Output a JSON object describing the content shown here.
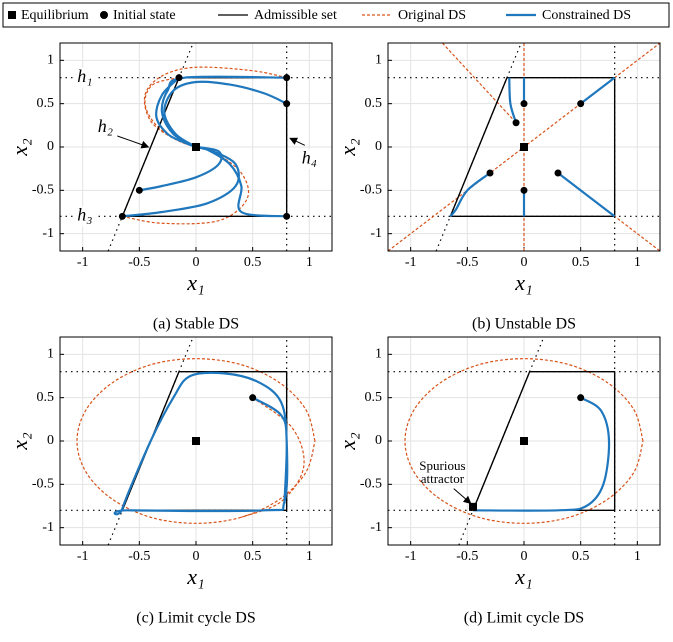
{
  "legend": {
    "items": [
      {
        "name": "Equilibrium",
        "color": "#000000",
        "style": "square"
      },
      {
        "name": "Initial state",
        "color": "#000000",
        "style": "circle"
      },
      {
        "name": "Admissible set",
        "color": "#000000",
        "style": "solid"
      },
      {
        "name": "Original DS",
        "color": "#d95319",
        "style": "dashed"
      },
      {
        "name": "Constrained DS",
        "color": "#1f77bd",
        "style": "thick"
      }
    ]
  },
  "chart_data": [
    {
      "type": "line",
      "caption": "(a) Stable DS",
      "xlabel": "x₁",
      "ylabel": "x₂",
      "xlim": [
        -1.2,
        1.2
      ],
      "ylim": [
        -1.2,
        1.2
      ],
      "xticks": [
        -1,
        -0.5,
        0,
        0.5,
        1
      ],
      "yticks": [
        -1,
        -0.5,
        0,
        0.5,
        1
      ],
      "grid": true,
      "equilibrium": {
        "x": [
          0
        ],
        "y": [
          0
        ]
      },
      "initial_states": {
        "x": [
          -0.15,
          0.8,
          0.8,
          -0.5,
          -0.65,
          0.8
        ],
        "y": [
          0.8,
          0.8,
          0.5,
          -0.5,
          -0.8,
          -0.8
        ]
      },
      "admissible_set": {
        "x": [
          -0.65,
          -0.15,
          0.8,
          0.8,
          -0.65
        ],
        "y": [
          -0.8,
          0.8,
          0.8,
          -0.8,
          -0.8
        ]
      },
      "boundaries": [
        {
          "x": [
            -1.2,
            1.2
          ],
          "y": [
            0.8,
            0.8
          ]
        },
        {
          "x": [
            -1.2,
            1.2
          ],
          "y": [
            -0.8,
            -0.8
          ]
        },
        {
          "x": [
            0.8,
            0.8
          ],
          "y": [
            -1.2,
            1.2
          ]
        },
        {
          "x": [
            -0.775,
            -0.025
          ],
          "y": [
            -1.2,
            1.2
          ]
        }
      ],
      "original_ds": [
        {
          "x": [
            0.8,
            0.5,
            0.0,
            -0.3,
            -0.45,
            -0.4,
            -0.2,
            0
          ],
          "y": [
            0.8,
            0.88,
            0.92,
            0.82,
            0.6,
            0.3,
            0.1,
            0
          ]
        },
        {
          "x": [
            -0.15,
            -0.38,
            -0.45,
            -0.35,
            -0.15,
            0
          ],
          "y": [
            0.8,
            0.72,
            0.5,
            0.25,
            0.07,
            0
          ]
        },
        {
          "x": [
            -0.65,
            -0.3,
            0.2,
            0.45,
            0.4,
            0.15,
            0
          ],
          "y": [
            -0.8,
            -0.88,
            -0.85,
            -0.6,
            -0.3,
            -0.05,
            0
          ]
        }
      ],
      "constrained_ds": [
        {
          "x": [
            -0.15,
            -0.3,
            -0.35,
            -0.25,
            -0.1,
            0
          ],
          "y": [
            0.8,
            0.6,
            0.35,
            0.15,
            0.05,
            0
          ]
        },
        {
          "x": [
            0.8,
            -0.1,
            -0.25,
            -0.3,
            -0.2,
            0
          ],
          "y": [
            0.8,
            0.8,
            0.65,
            0.4,
            0.15,
            0
          ]
        },
        {
          "x": [
            0.8,
            0.6,
            0.3,
            0.0,
            -0.2,
            -0.28,
            -0.18,
            0
          ],
          "y": [
            0.5,
            0.62,
            0.72,
            0.75,
            0.65,
            0.4,
            0.15,
            0
          ]
        },
        {
          "x": [
            -0.5,
            -0.3,
            0.0,
            0.2,
            0.2,
            0
          ],
          "y": [
            -0.5,
            -0.45,
            -0.35,
            -0.2,
            -0.05,
            0
          ]
        },
        {
          "x": [
            -0.65,
            -0.3,
            0.1,
            0.35,
            0.35,
            0.15,
            0
          ],
          "y": [
            -0.8,
            -0.75,
            -0.65,
            -0.45,
            -0.2,
            -0.05,
            0
          ]
        },
        {
          "x": [
            0.8,
            0.4,
            0.4,
            0.3,
            0.1,
            0
          ],
          "y": [
            -0.8,
            -0.75,
            -0.45,
            -0.2,
            -0.03,
            0
          ]
        }
      ],
      "annotations": [
        "h₁",
        "h₂",
        "h₃",
        "h₄"
      ]
    },
    {
      "type": "line",
      "caption": "(b) Unstable DS",
      "xlabel": "x₁",
      "ylabel": "x₂",
      "xlim": [
        -1.2,
        1.2
      ],
      "ylim": [
        -1.2,
        1.2
      ],
      "xticks": [
        -1,
        -0.5,
        0,
        0.5,
        1
      ],
      "yticks": [
        -1,
        -0.5,
        0,
        0.5,
        1
      ],
      "grid": true,
      "equilibrium": {
        "x": [
          0
        ],
        "y": [
          0
        ]
      },
      "initial_states": {
        "x": [
          0,
          -0.07,
          0.5,
          -0.3,
          0,
          0.3
        ],
        "y": [
          0.5,
          0.28,
          0.5,
          -0.3,
          -0.5,
          -0.3
        ]
      },
      "admissible_set": {
        "x": [
          -0.65,
          -0.15,
          0.8,
          0.8,
          -0.65
        ],
        "y": [
          -0.8,
          0.8,
          0.8,
          -0.8,
          -0.8
        ]
      },
      "boundaries": [
        {
          "x": [
            -1.2,
            1.2
          ],
          "y": [
            0.8,
            0.8
          ]
        },
        {
          "x": [
            -1.2,
            1.2
          ],
          "y": [
            -0.8,
            -0.8
          ]
        },
        {
          "x": [
            0.8,
            0.8
          ],
          "y": [
            -1.2,
            1.2
          ]
        },
        {
          "x": [
            -0.775,
            -0.025
          ],
          "y": [
            -1.2,
            1.2
          ]
        }
      ],
      "original_ds": [
        {
          "x": [
            -1.2,
            1.2
          ],
          "y": [
            -1.2,
            1.2
          ]
        },
        {
          "x": [
            0.3,
            1.2
          ],
          "y": [
            -0.3,
            -1.2
          ]
        },
        {
          "x": [
            0,
            0
          ],
          "y": [
            -1.2,
            1.2
          ]
        },
        {
          "x": [
            -0.72,
            -0.07
          ],
          "y": [
            1.2,
            0.28
          ]
        }
      ],
      "constrained_ds": [
        {
          "x": [
            0,
            0
          ],
          "y": [
            0.5,
            0.8
          ]
        },
        {
          "x": [
            -0.07,
            -0.12,
            -0.13
          ],
          "y": [
            0.28,
            0.5,
            0.8
          ]
        },
        {
          "x": [
            0.5,
            0.8
          ],
          "y": [
            0.5,
            0.8
          ]
        },
        {
          "x": [
            -0.3,
            -0.5,
            -0.6,
            -0.65
          ],
          "y": [
            -0.3,
            -0.5,
            -0.72,
            -0.8
          ]
        },
        {
          "x": [
            0,
            0
          ],
          "y": [
            -0.5,
            -0.8
          ]
        },
        {
          "x": [
            0.3,
            0.8
          ],
          "y": [
            -0.3,
            -0.8
          ]
        }
      ]
    },
    {
      "type": "line",
      "caption": "(c) Limit cycle DS",
      "xlabel": "x₁",
      "ylabel": "x₂",
      "xlim": [
        -1.2,
        1.2
      ],
      "ylim": [
        -1.2,
        1.2
      ],
      "xticks": [
        -1,
        -0.5,
        0,
        0.5,
        1
      ],
      "yticks": [
        -1,
        -0.5,
        0,
        0.5,
        1
      ],
      "grid": true,
      "equilibrium": {
        "x": [
          0
        ],
        "y": [
          0
        ]
      },
      "initial_states": {
        "x": [
          0.5
        ],
        "y": [
          0.5
        ]
      },
      "admissible_set": {
        "x": [
          -0.65,
          -0.15,
          0.8,
          0.8,
          -0.65
        ],
        "y": [
          -0.8,
          0.8,
          0.8,
          -0.8,
          -0.8
        ]
      },
      "boundaries": [
        {
          "x": [
            -1.2,
            1.2
          ],
          "y": [
            0.8,
            0.8
          ]
        },
        {
          "x": [
            -1.2,
            1.2
          ],
          "y": [
            -0.8,
            -0.8
          ]
        },
        {
          "x": [
            0.8,
            0.8
          ],
          "y": [
            -1.2,
            1.2
          ]
        },
        {
          "x": [
            -0.775,
            -0.025
          ],
          "y": [
            -1.2,
            1.2
          ]
        }
      ],
      "original_ds": [
        {
          "x": [
            1.05,
            0.97,
            0.74,
            0.4,
            0,
            -0.4,
            -0.74,
            -0.97,
            -1.05,
            -0.97,
            -0.74,
            -0.4,
            0,
            0.4,
            0.74,
            0.97,
            1.05
          ],
          "y": [
            0,
            0.36,
            0.67,
            0.88,
            0.95,
            0.88,
            0.67,
            0.36,
            0,
            -0.36,
            -0.67,
            -0.88,
            -0.95,
            -0.88,
            -0.67,
            -0.36,
            0
          ]
        },
        {
          "x": [
            0.5,
            0.85,
            0.95,
            0.75,
            0.4
          ],
          "y": [
            0.5,
            0.15,
            -0.3,
            -0.7,
            -0.88
          ]
        }
      ],
      "constrained_ds": [
        {
          "x": [
            0.5,
            0.75,
            0.8,
            0.78,
            0.6,
            -0.6,
            -0.65,
            -0.4,
            -0.2,
            -0.05,
            0.25,
            0.55,
            0.75,
            0.8,
            0.78
          ],
          "y": [
            0.5,
            0.3,
            0,
            -0.7,
            -0.8,
            -0.8,
            -0.78,
            0,
            0.5,
            0.75,
            0.78,
            0.68,
            0.45,
            0,
            -0.72
          ]
        }
      ]
    },
    {
      "type": "line",
      "caption": "(d) Limit cycle DS",
      "xlabel": "x₁",
      "ylabel": "x₂",
      "xlim": [
        -1.2,
        1.2
      ],
      "ylim": [
        -1.2,
        1.2
      ],
      "xticks": [
        -1,
        -0.5,
        0,
        0.5,
        1
      ],
      "yticks": [
        -1,
        -0.5,
        0,
        0.5,
        1
      ],
      "grid": true,
      "equilibrium": {
        "x": [
          0,
          -0.45
        ],
        "y": [
          0,
          -0.76
        ]
      },
      "initial_states": {
        "x": [
          0.5
        ],
        "y": [
          0.5
        ]
      },
      "admissible_set": {
        "x": [
          -0.45,
          0.05,
          0.8,
          0.8,
          -0.45
        ],
        "y": [
          -0.8,
          0.8,
          0.8,
          -0.8,
          -0.8
        ]
      },
      "boundaries": [
        {
          "x": [
            -1.2,
            1.2
          ],
          "y": [
            0.8,
            0.8
          ]
        },
        {
          "x": [
            -1.2,
            1.2
          ],
          "y": [
            -0.8,
            -0.8
          ]
        },
        {
          "x": [
            0.8,
            0.8
          ],
          "y": [
            -1.2,
            1.2
          ]
        },
        {
          "x": [
            -0.575,
            0.175
          ],
          "y": [
            -1.2,
            1.2
          ]
        }
      ],
      "original_ds": [
        {
          "x": [
            1.05,
            0.97,
            0.74,
            0.4,
            0,
            -0.4,
            -0.74,
            -0.97,
            -1.05,
            -0.97,
            -0.74,
            -0.4,
            0,
            0.4,
            0.74,
            0.97,
            1.05
          ],
          "y": [
            0,
            0.36,
            0.67,
            0.88,
            0.95,
            0.88,
            0.67,
            0.36,
            0,
            -0.36,
            -0.67,
            -0.88,
            -0.95,
            -0.88,
            -0.67,
            -0.36,
            0
          ]
        }
      ],
      "constrained_ds": [
        {
          "x": [
            0.5,
            0.68,
            0.75,
            0.7,
            0.55,
            0.3,
            -0.45
          ],
          "y": [
            0.5,
            0.35,
            0,
            -0.5,
            -0.75,
            -0.8,
            -0.8
          ]
        }
      ],
      "annotations": [
        "Spurious",
        "attractor"
      ]
    }
  ]
}
